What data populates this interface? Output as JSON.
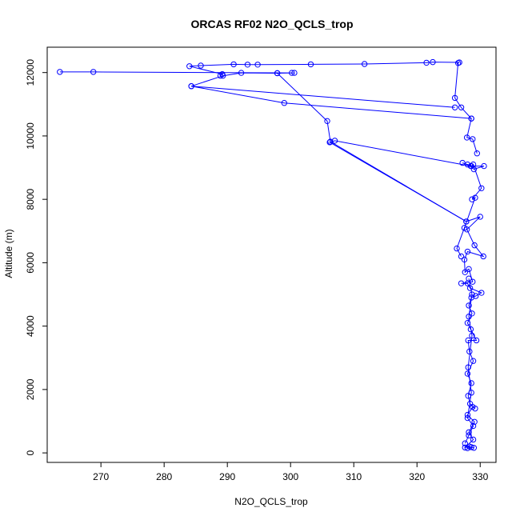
{
  "chart_data": {
    "type": "line",
    "title": "ORCAS RF02 N2O_QCLS_trop",
    "xlabel": "N2O_QCLS_trop",
    "ylabel": "Altitude (m)",
    "xlim": [
      261.5,
      332.5
    ],
    "ylim": [
      -300,
      12800
    ],
    "x_ticks": [
      270,
      280,
      290,
      300,
      310,
      320,
      330
    ],
    "y_ticks": [
      0,
      2000,
      4000,
      6000,
      8000,
      10000,
      12000
    ],
    "grid": false,
    "legend": "none",
    "line_color": "#0000ff",
    "marker": "open-circle",
    "series": [
      {
        "points": [
          [
            328.0,
            150
          ],
          [
            328.6,
            180
          ],
          [
            329.0,
            160
          ],
          [
            328.3,
            200
          ],
          [
            327.6,
            170
          ],
          [
            328.9,
            420
          ],
          [
            328.2,
            650
          ],
          [
            329.1,
            980
          ],
          [
            328.0,
            1200
          ],
          [
            328.8,
            1450
          ],
          [
            329.2,
            1400
          ],
          [
            328.4,
            1550
          ],
          [
            328.1,
            1800
          ],
          [
            328.6,
            2200
          ],
          [
            328.0,
            2500
          ],
          [
            328.9,
            2900
          ],
          [
            328.3,
            3200
          ],
          [
            328.1,
            3550
          ],
          [
            329.4,
            3550
          ],
          [
            328.5,
            3900
          ],
          [
            328.0,
            4100
          ],
          [
            328.7,
            4400
          ],
          [
            328.2,
            4650
          ],
          [
            328.6,
            4900
          ],
          [
            329.3,
            4950
          ],
          [
            330.2,
            5050
          ],
          [
            328.4,
            5200
          ],
          [
            328.0,
            5350
          ],
          [
            327.0,
            5350
          ],
          [
            328.8,
            5400
          ],
          [
            328.2,
            5800
          ],
          [
            327.6,
            5700
          ],
          [
            327.5,
            6100
          ],
          [
            328.0,
            6350
          ],
          [
            330.5,
            6200
          ],
          [
            329.1,
            6550
          ],
          [
            327.9,
            7050
          ],
          [
            330.0,
            7450
          ],
          [
            327.8,
            7300
          ],
          [
            306.2,
            9800
          ],
          [
            307.0,
            9850
          ],
          [
            328.5,
            9050
          ],
          [
            330.6,
            9050
          ],
          [
            329.0,
            8950
          ],
          [
            328.0,
            9100
          ],
          [
            327.2,
            9150
          ],
          [
            328.6,
            9050
          ],
          [
            328.9,
            9100
          ],
          [
            330.2,
            8350
          ],
          [
            328.7,
            8000
          ],
          [
            329.2,
            8050
          ],
          [
            327.5,
            7100
          ],
          [
            326.3,
            6450
          ],
          [
            327.0,
            6200
          ]
        ]
      },
      {
        "points": [
          [
            327.6,
            300
          ],
          [
            328.2,
            550
          ],
          [
            328.9,
            850
          ],
          [
            328.0,
            1100
          ],
          [
            328.6,
            1900
          ],
          [
            328.1,
            2700
          ],
          [
            328.7,
            3700
          ],
          [
            328.2,
            4300
          ],
          [
            328.7,
            5000
          ],
          [
            328.2,
            5500
          ]
        ]
      },
      {
        "points": [
          [
            329.5,
            9450
          ],
          [
            328.8,
            9900
          ],
          [
            327.9,
            9950
          ],
          [
            328.6,
            10550
          ],
          [
            327.0,
            10900
          ],
          [
            326.0,
            11200
          ],
          [
            326.5,
            12300
          ],
          [
            326.7,
            12320
          ],
          [
            322.5,
            12330
          ],
          [
            321.5,
            12310
          ],
          [
            311.7,
            12270
          ],
          [
            303.2,
            12260
          ],
          [
            294.8,
            12250
          ],
          [
            293.2,
            12250
          ],
          [
            291.0,
            12260
          ],
          [
            285.8,
            12220
          ],
          [
            284.0,
            12200
          ],
          [
            289.2,
            11950
          ],
          [
            288.9,
            11900
          ]
        ]
      },
      {
        "points": [
          [
            263.5,
            12020
          ],
          [
            268.8,
            12020
          ],
          [
            300.2,
            11990
          ],
          [
            300.6,
            11990
          ],
          [
            297.9,
            11980
          ],
          [
            292.2,
            11990
          ],
          [
            289.3,
            11900
          ],
          [
            284.3,
            11570
          ],
          [
            326.0,
            10900
          ]
        ]
      },
      {
        "points": [
          [
            297.9,
            11980
          ],
          [
            305.8,
            10470
          ],
          [
            306.3,
            9820
          ],
          [
            327.8,
            7300
          ]
        ]
      },
      {
        "points": [
          [
            284.3,
            11570
          ],
          [
            299.0,
            11040
          ],
          [
            328.6,
            10550
          ]
        ]
      }
    ]
  }
}
